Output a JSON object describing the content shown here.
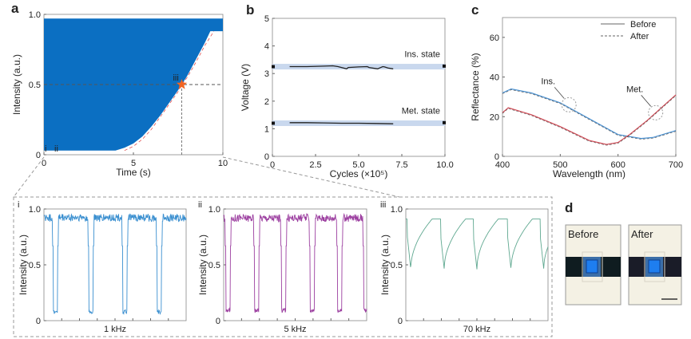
{
  "panel_labels": {
    "a": "a",
    "b": "b",
    "c": "c",
    "d": "d"
  },
  "chart_data": [
    {
      "id": "a",
      "type": "area",
      "xlabel": "Time (s)",
      "ylabel": "Intensity (a.u.)",
      "xlim": [
        0,
        10
      ],
      "ylim": [
        0,
        1
      ],
      "xticks": [
        "0",
        "5",
        "10"
      ],
      "xtickvals": [
        0,
        5,
        10
      ],
      "yticks": [
        "0",
        "0.5",
        "1.0"
      ],
      "ytickvals": [
        0,
        0.5,
        1
      ],
      "color": "#0b6fc2",
      "fill_top": 0.97,
      "envelope": {
        "x": [
          0,
          4,
          4.5,
          5,
          5.5,
          6,
          6.5,
          7,
          7.5,
          7.7,
          8,
          8.5,
          9,
          9.3,
          10
        ],
        "y": [
          0.03,
          0.03,
          0.05,
          0.08,
          0.13,
          0.2,
          0.28,
          0.37,
          0.46,
          0.5,
          0.56,
          0.68,
          0.8,
          0.88,
          0.88
        ]
      },
      "fit_curve": {
        "color": "#e05050",
        "x": [
          4.5,
          5,
          5.5,
          6,
          6.5,
          7,
          7.5,
          7.7,
          8,
          8.5,
          9,
          9.5
        ],
        "y": [
          0.03,
          0.06,
          0.11,
          0.18,
          0.27,
          0.36,
          0.45,
          0.5,
          0.55,
          0.66,
          0.78,
          0.88
        ]
      },
      "marker": {
        "x": 7.7,
        "y": 0.5,
        "color": "#f26522",
        "label": "iii"
      },
      "annotations": [
        "i",
        "ii"
      ]
    },
    {
      "id": "b",
      "type": "line",
      "xlabel": "Cycles (×10⁵)",
      "ylabel": "Voltage (V)",
      "xlim": [
        0,
        10
      ],
      "ylim": [
        0,
        5
      ],
      "xticks": [
        "0",
        "2.5",
        "5.0",
        "7.5",
        "10.0"
      ],
      "xtickvals": [
        0,
        2.5,
        5,
        7.5,
        10
      ],
      "yticks": [
        "0",
        "1",
        "2",
        "3",
        "4",
        "5"
      ],
      "ytickvals": [
        0,
        1,
        2,
        3,
        4,
        5
      ],
      "band_color": "#c9d8ee",
      "series": [
        {
          "name": "Ins. state",
          "band": 3.25,
          "x": [
            1,
            2,
            3,
            3.5,
            3.8,
            4.3,
            4.4,
            5,
            5.5,
            5.6,
            6.1,
            6.2,
            6.4,
            6.5,
            6.7,
            7
          ],
          "y": [
            3.25,
            3.25,
            3.27,
            3.28,
            3.25,
            3.17,
            3.22,
            3.24,
            3.25,
            3.22,
            3.17,
            3.2,
            3.25,
            3.24,
            3.2,
            3.17
          ],
          "end": 3.27
        },
        {
          "name": "Met. state",
          "band": 1.2,
          "x": [
            1,
            2,
            3,
            4,
            5,
            6,
            7
          ],
          "y": [
            1.22,
            1.22,
            1.21,
            1.2,
            1.2,
            1.19,
            1.18
          ],
          "end": 1.22
        }
      ]
    },
    {
      "id": "c",
      "type": "line",
      "xlabel": "Wavelength (nm)",
      "ylabel": "Reflectance (%)",
      "xlim": [
        400,
        700
      ],
      "ylim": [
        0,
        70
      ],
      "xticks": [
        "400",
        "500",
        "600",
        "700"
      ],
      "xtickvals": [
        400,
        500,
        600,
        700
      ],
      "yticks": [
        "0",
        "20",
        "40",
        "60"
      ],
      "ytickvals": [
        0,
        20,
        40,
        60
      ],
      "legend": {
        "position": "top-right",
        "entries": [
          "Before",
          "After"
        ]
      },
      "series": [
        {
          "name": "Ins.",
          "color": "#4a90d0",
          "x": [
            400,
            415,
            450,
            500,
            550,
            600,
            640,
            660,
            700
          ],
          "y": [
            32,
            34,
            32,
            27,
            19,
            11,
            9,
            9.5,
            13
          ]
        },
        {
          "name": "Met.",
          "color": "#d04a55",
          "x": [
            400,
            410,
            450,
            500,
            550,
            580,
            600,
            620,
            650,
            700
          ],
          "y": [
            22,
            24.5,
            21,
            15,
            8,
            6,
            7,
            11,
            18,
            31
          ]
        }
      ],
      "annotations": [
        {
          "text": "Ins.",
          "x": 515,
          "y": 26
        },
        {
          "text": "Met.",
          "x": 665,
          "y": 22
        }
      ]
    },
    {
      "id": "i",
      "type": "line",
      "label": "i",
      "xlabel": "1 kHz",
      "ylabel": "Intensity (a.u.)",
      "ylim": [
        0,
        1
      ],
      "yticks": [
        "0",
        "0.5",
        "1.0"
      ],
      "ytickvals": [
        0,
        0.5,
        1
      ],
      "color": "#3a8fd0",
      "high": 0.92,
      "low": 0.06,
      "dips": [
        0.08,
        0.33,
        0.57,
        0.81
      ],
      "dip_width": 0.03
    },
    {
      "id": "ii",
      "type": "line",
      "label": "ii",
      "xlabel": "5 kHz",
      "ylabel": "Intensity (a.u.)",
      "ylim": [
        0,
        1
      ],
      "yticks": [
        "0",
        "0.5",
        "1.0"
      ],
      "ytickvals": [
        0,
        0.5,
        1
      ],
      "color": "#9c3fa0",
      "high": 0.92,
      "low": 0.07,
      "dips": [
        0.03,
        0.23,
        0.42,
        0.62,
        0.81,
        0.995
      ],
      "dip_width": 0.03
    },
    {
      "id": "iii",
      "type": "line",
      "label": "iii",
      "xlabel": "70 kHz",
      "ylabel": "Intensity (a.u.)",
      "ylim": [
        0,
        1
      ],
      "yticks": [
        "0",
        "0.5",
        "1.0"
      ],
      "ytickvals": [
        0,
        0.5,
        1
      ],
      "color": "#5fa890",
      "high": 0.91,
      "low": 0.46,
      "dips": [
        0.035,
        0.27,
        0.5,
        0.74,
        0.97
      ],
      "dip_width": 0.1
    }
  ],
  "panel_d": {
    "before": "Before",
    "after": "After"
  }
}
